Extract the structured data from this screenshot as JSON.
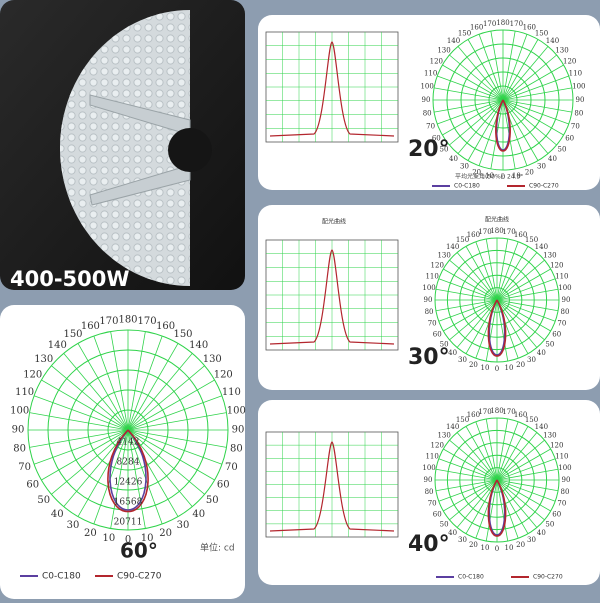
{
  "photo": {
    "label": "400-500W"
  },
  "angles": [
    0,
    10,
    20,
    30,
    40,
    50,
    60,
    70,
    80,
    90,
    100,
    110,
    120,
    130,
    140,
    150,
    160,
    170,
    180
  ],
  "legend": [
    "C0-C180",
    "C90-C270"
  ],
  "unit": "单位: cd",
  "panels": [
    {
      "beam": "20°",
      "note": "平均光束角(50%): 24.3°"
    },
    {
      "beam": "30°",
      "titles": [
        "配光曲线",
        "配光曲线"
      ]
    },
    {
      "beam": "40°"
    }
  ],
  "large": {
    "beam": "60°",
    "intensities": [
      "4142",
      "8284",
      "12426",
      "16568",
      "20711"
    ]
  }
}
